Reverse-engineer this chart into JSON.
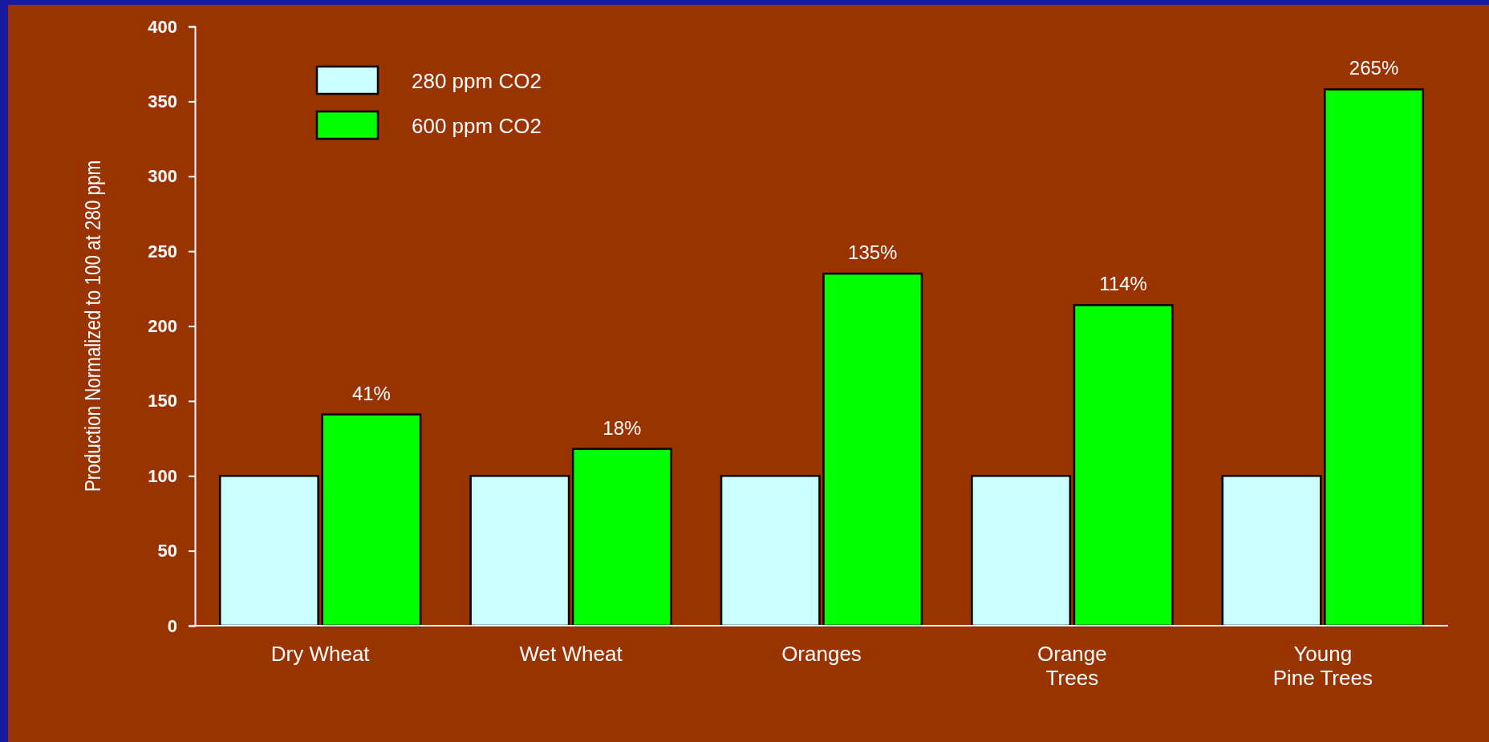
{
  "chart_data": {
    "type": "bar",
    "ylabel": "Production Normalized to 100 at 280 ppm",
    "categories": [
      "Dry Wheat",
      "Wet Wheat",
      "Oranges",
      "Orange\nTrees",
      "Young\nPine Trees"
    ],
    "series": [
      {
        "name": "280 ppm CO2",
        "color": "#ccffff",
        "values": [
          100,
          100,
          100,
          100,
          100
        ]
      },
      {
        "name": "600 ppm CO2",
        "color": "#00ff00",
        "values": [
          141,
          118,
          235,
          214,
          358
        ]
      }
    ],
    "annotations": [
      {
        "text": "41%",
        "x": "Dry Wheat",
        "y": 141
      },
      {
        "text": "18%",
        "x": "Wet Wheat",
        "y": 118
      },
      {
        "text": "135%",
        "x": "Oranges",
        "y": 235
      },
      {
        "text": "114%",
        "x": "Orange\nTrees",
        "y": 214
      },
      {
        "text": "265%",
        "x": "Young\nPine Trees",
        "y": 358
      }
    ],
    "ylim": [
      0,
      400
    ],
    "yticks": [
      0,
      50,
      100,
      150,
      200,
      250,
      300,
      350,
      400
    ],
    "grid": false,
    "legend": "top left"
  }
}
